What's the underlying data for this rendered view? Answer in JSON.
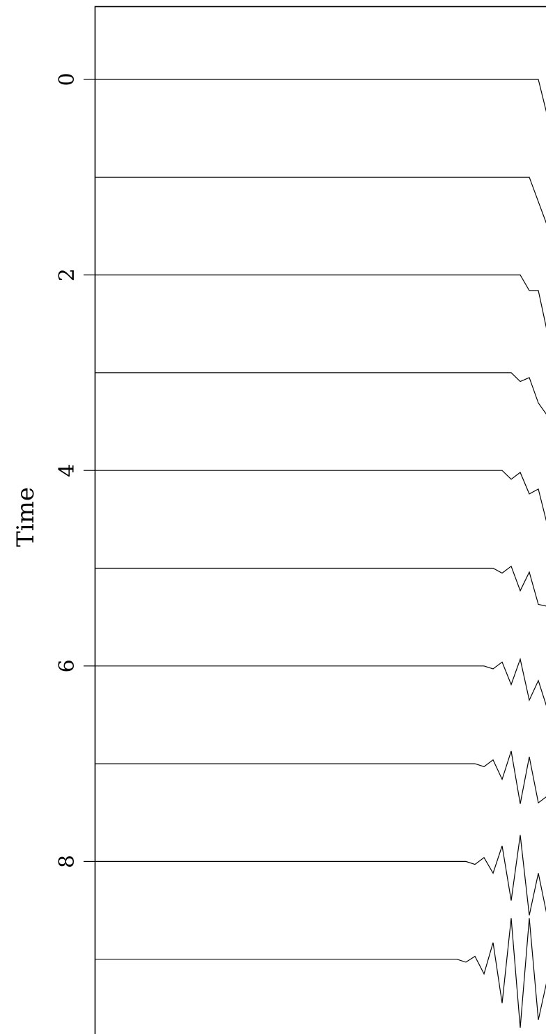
{
  "chart_data": {
    "type": "line",
    "title": "",
    "xlabel": "",
    "ylabel": "Time",
    "ylim": [
      -0.75,
      9.8
    ],
    "yticks": [
      0,
      2,
      4,
      6,
      8
    ],
    "grid": false,
    "series": [
      {
        "offset": 0,
        "points": [
          [
            0,
            0
          ],
          [
            0.49,
            0
          ],
          [
            0.51,
            -0.75
          ],
          [
            1,
            -0.75
          ]
        ]
      },
      {
        "offset": 1,
        "points": [
          [
            0,
            0
          ],
          [
            0.48,
            0
          ],
          [
            0.49,
            -0.25
          ],
          [
            0.5,
            -0.5
          ],
          [
            0.51,
            -0.75
          ],
          [
            1,
            -0.75
          ]
        ]
      },
      {
        "offset": 2,
        "points": [
          [
            0,
            0
          ],
          [
            0.47,
            0
          ],
          [
            0.48,
            -0.16
          ],
          [
            0.49,
            -0.16
          ],
          [
            0.5,
            -0.59
          ],
          [
            0.51,
            -0.59
          ],
          [
            0.52,
            -0.75
          ],
          [
            1,
            -0.75
          ]
        ]
      },
      {
        "offset": 3,
        "points": [
          [
            0,
            0
          ],
          [
            0.46,
            0
          ],
          [
            0.47,
            -0.09
          ],
          [
            0.48,
            -0.05
          ],
          [
            0.49,
            -0.31
          ],
          [
            0.5,
            -0.44
          ],
          [
            0.51,
            -0.47
          ],
          [
            0.52,
            -0.7
          ],
          [
            0.53,
            -0.64
          ],
          [
            0.54,
            -0.75
          ],
          [
            1,
            -0.75
          ]
        ]
      },
      {
        "offset": 4,
        "points": [
          [
            0,
            0
          ],
          [
            0.45,
            0
          ],
          [
            0.46,
            -0.09
          ],
          [
            0.47,
            -0.02
          ],
          [
            0.48,
            -0.24
          ],
          [
            0.49,
            -0.19
          ],
          [
            0.5,
            -0.56
          ],
          [
            0.51,
            -0.5
          ],
          [
            0.52,
            -0.74
          ],
          [
            0.53,
            -0.66
          ],
          [
            0.54,
            -0.75
          ],
          [
            1,
            -0.75
          ]
        ]
      },
      {
        "offset": 5,
        "points": [
          [
            0,
            0
          ],
          [
            0.44,
            0
          ],
          [
            0.45,
            -0.05
          ],
          [
            0.46,
            0.02
          ],
          [
            0.47,
            -0.23
          ],
          [
            0.48,
            -0.04
          ],
          [
            0.49,
            -0.37
          ],
          [
            0.5,
            -0.39
          ],
          [
            0.51,
            -0.71
          ],
          [
            0.52,
            -0.52
          ],
          [
            0.53,
            -0.77
          ],
          [
            0.54,
            -0.69
          ],
          [
            0.55,
            -0.75
          ],
          [
            1,
            -0.75
          ]
        ]
      },
      {
        "offset": 6,
        "points": [
          [
            0,
            0
          ],
          [
            0.43,
            0
          ],
          [
            0.44,
            -0.03
          ],
          [
            0.45,
            0.04
          ],
          [
            0.46,
            -0.19
          ],
          [
            0.47,
            0.07
          ],
          [
            0.48,
            -0.35
          ],
          [
            0.49,
            -0.15
          ],
          [
            0.5,
            -0.44
          ],
          [
            0.51,
            -0.6
          ],
          [
            0.52,
            -0.4
          ],
          [
            0.53,
            -0.8
          ],
          [
            0.54,
            -0.57
          ],
          [
            0.55,
            -0.78
          ],
          [
            0.56,
            -0.73
          ],
          [
            0.57,
            -0.75
          ],
          [
            1,
            -0.75
          ]
        ]
      },
      {
        "offset": 7,
        "points": [
          [
            0,
            0
          ],
          [
            0.42,
            0
          ],
          [
            0.43,
            -0.03
          ],
          [
            0.44,
            0.04
          ],
          [
            0.45,
            -0.16
          ],
          [
            0.46,
            0.13
          ],
          [
            0.47,
            -0.41
          ],
          [
            0.48,
            0.07
          ],
          [
            0.49,
            -0.4
          ],
          [
            0.5,
            -0.33
          ],
          [
            0.51,
            -0.24
          ],
          [
            0.52,
            -0.8
          ],
          [
            0.53,
            -0.35
          ],
          [
            0.54,
            -0.85
          ],
          [
            0.55,
            -0.62
          ],
          [
            0.56,
            -0.78
          ],
          [
            0.57,
            -0.73
          ],
          [
            0.58,
            -0.75
          ],
          [
            1,
            -0.75
          ]
        ]
      },
      {
        "offset": 8,
        "points": [
          [
            0,
            0
          ],
          [
            0.41,
            0
          ],
          [
            0.42,
            -0.03
          ],
          [
            0.43,
            0.04
          ],
          [
            0.44,
            -0.12
          ],
          [
            0.45,
            0.16
          ],
          [
            0.46,
            -0.4
          ],
          [
            0.47,
            0.27
          ],
          [
            0.48,
            -0.55
          ],
          [
            0.49,
            -0.12
          ],
          [
            0.5,
            -0.57
          ],
          [
            0.51,
            -0.45
          ],
          [
            0.52,
            -0.15
          ],
          [
            0.53,
            -0.9
          ],
          [
            0.54,
            -0.1
          ],
          [
            0.55,
            -0.9
          ],
          [
            0.56,
            -0.6
          ],
          [
            0.57,
            -0.79
          ],
          [
            0.58,
            -0.72
          ],
          [
            0.59,
            -0.75
          ],
          [
            1,
            -0.75
          ]
        ]
      },
      {
        "offset": 9,
        "points": [
          [
            0,
            0
          ],
          [
            0.4,
            0
          ],
          [
            0.41,
            -0.03
          ],
          [
            0.42,
            0.03
          ],
          [
            0.43,
            -0.15
          ],
          [
            0.44,
            0.17
          ],
          [
            0.45,
            -0.45
          ],
          [
            0.46,
            0.42
          ],
          [
            0.47,
            -0.7
          ],
          [
            0.48,
            0.42
          ],
          [
            0.49,
            -0.62
          ],
          [
            0.5,
            -0.2
          ],
          [
            0.51,
            -0.8
          ],
          [
            0.52,
            0.25
          ],
          [
            0.53,
            -0.9
          ],
          [
            0.54,
            0.2
          ],
          [
            0.55,
            -0.75
          ],
          [
            0.56,
            -0.95
          ],
          [
            0.57,
            -0.35
          ],
          [
            0.58,
            -1.0
          ],
          [
            0.59,
            -0.6
          ],
          [
            0.6,
            -0.8
          ],
          [
            0.61,
            -0.74
          ],
          [
            0.62,
            -0.75
          ],
          [
            1,
            -0.75
          ]
        ]
      }
    ]
  }
}
